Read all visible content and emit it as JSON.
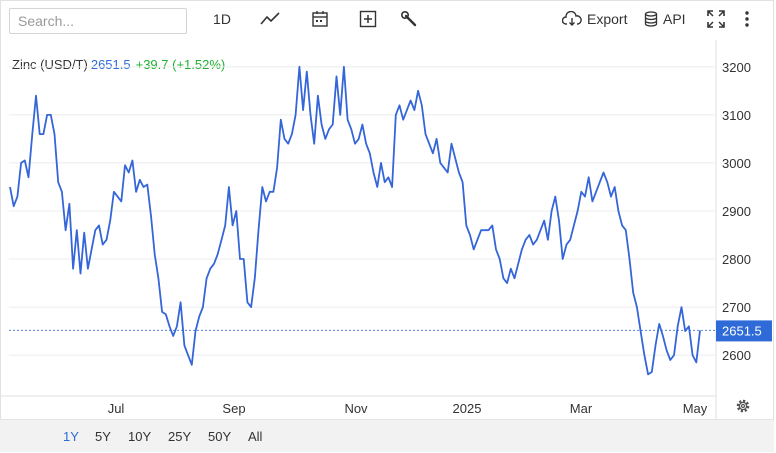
{
  "toolbar": {
    "search_placeholder": "Search...",
    "interval_label": "1D",
    "export_label": "Export",
    "api_label": "API",
    "icons": [
      "line-chart-icon",
      "calendar-icon",
      "add-compare-icon",
      "wrench-icon",
      "cloud-download-icon",
      "database-icon",
      "fullscreen-icon",
      "more-vertical-icon"
    ]
  },
  "legend": {
    "name": "Zinc (USD/T)",
    "price": "2651.5",
    "change": "+39.7 (+1.52%)"
  },
  "colors": {
    "line": "#3465d9",
    "change_positive": "#1fb02f",
    "price_tag_bg": "#2f6bd8",
    "reference_line": "#5b84d9",
    "grid": "#ececec"
  },
  "range_buttons": [
    {
      "label": "1Y",
      "active": true
    },
    {
      "label": "5Y",
      "active": false
    },
    {
      "label": "10Y",
      "active": false
    },
    {
      "label": "25Y",
      "active": false
    },
    {
      "label": "50Y",
      "active": false
    },
    {
      "label": "All",
      "active": false
    }
  ],
  "chart_data": {
    "type": "line",
    "title": "",
    "xlabel": "",
    "ylabel": "",
    "x_tick_labels": [
      "Jul",
      "Sep",
      "Nov",
      "2025",
      "Mar",
      "May"
    ],
    "y_tick_labels": [
      "2600",
      "2700",
      "2800",
      "2900",
      "3000",
      "3100",
      "3200"
    ],
    "ylim": [
      2515,
      3235
    ],
    "last_value_label": "2651.5",
    "grid": true,
    "series": [
      {
        "values": [
          2950,
          2910,
          2930,
          3000,
          3005,
          2970,
          3060,
          3140,
          3060,
          3060,
          3100,
          3100,
          3060,
          2960,
          2940,
          2860,
          2915,
          2780,
          2860,
          2770,
          2855,
          2780,
          2820,
          2860,
          2870,
          2830,
          2840,
          2880,
          2940,
          2930,
          2920,
          2995,
          2980,
          3005,
          2940,
          2965,
          2950,
          2955,
          2890,
          2810,
          2760,
          2690,
          2685,
          2660,
          2640,
          2660,
          2710,
          2620,
          2600,
          2580,
          2650,
          2680,
          2700,
          2760,
          2780,
          2790,
          2810,
          2840,
          2870,
          2950,
          2870,
          2900,
          2800,
          2800,
          2710,
          2700,
          2760,
          2860,
          2950,
          2920,
          2940,
          2940,
          2990,
          3090,
          3050,
          3040,
          3060,
          3100,
          3200,
          3110,
          3190,
          3100,
          3040,
          3140,
          3080,
          3050,
          3070,
          3080,
          3180,
          3100,
          3200,
          3090,
          3070,
          3040,
          3050,
          3080,
          3040,
          3020,
          2980,
          2950,
          3000,
          2960,
          2970,
          2950,
          3100,
          3120,
          3090,
          3110,
          3130,
          3110,
          3150,
          3120,
          3060,
          3040,
          3020,
          3050,
          3000,
          2990,
          2980,
          3040,
          3010,
          2980,
          2960,
          2870,
          2850,
          2820,
          2840,
          2860,
          2860,
          2860,
          2870,
          2820,
          2800,
          2760,
          2750,
          2780,
          2760,
          2790,
          2820,
          2840,
          2850,
          2830,
          2840,
          2860,
          2880,
          2840,
          2900,
          2930,
          2880,
          2800,
          2830,
          2840,
          2870,
          2900,
          2940,
          2930,
          2970,
          2920,
          2940,
          2960,
          2980,
          2960,
          2930,
          2950,
          2900,
          2870,
          2860,
          2800,
          2730,
          2700,
          2650,
          2600,
          2560,
          2565,
          2620,
          2665,
          2640,
          2610,
          2590,
          2600,
          2660,
          2700,
          2650,
          2660,
          2600,
          2585,
          2651.5
        ]
      }
    ]
  }
}
